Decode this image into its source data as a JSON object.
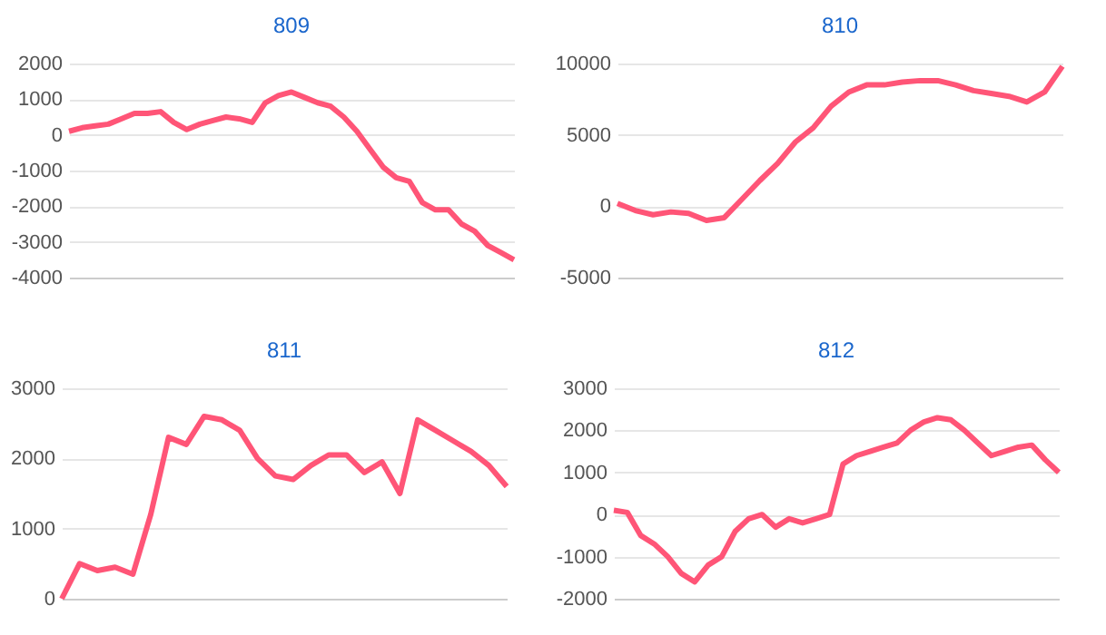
{
  "chart_data": [
    {
      "type": "line",
      "title": "809",
      "tick_labels": "y",
      "grid": "y",
      "categories": [
        null,
        null,
        null,
        null,
        null,
        null,
        null,
        null,
        null,
        null,
        null,
        null,
        null,
        null,
        null,
        null,
        null,
        null,
        null,
        null,
        null,
        null,
        null,
        null,
        null,
        null,
        null,
        null,
        null,
        null,
        null,
        null,
        null,
        null,
        null
      ],
      "series": [
        {
          "color": "#ff5577",
          "values": [
            100,
            200,
            250,
            300,
            450,
            600,
            600,
            650,
            350,
            150,
            300,
            400,
            500,
            450,
            350,
            900,
            1100,
            1200,
            1050,
            900,
            800,
            500,
            100,
            -400,
            -900,
            -1200,
            -1300,
            -1900,
            -2100,
            -2100,
            -2500,
            -2700,
            -3100,
            -3300,
            -3500
          ]
        }
      ],
      "ylim": [
        -4000,
        2000
      ],
      "yticks": [
        -4000,
        -3000,
        -2000,
        -1000,
        0,
        1000,
        2000
      ]
    },
    {
      "type": "line",
      "title": "810",
      "tick_labels": "y",
      "grid": "y",
      "categories": [
        null,
        null,
        null,
        null,
        null,
        null,
        null,
        null,
        null,
        null,
        null,
        null,
        null,
        null,
        null,
        null,
        null,
        null,
        null,
        null,
        null,
        null,
        null,
        null,
        null,
        null
      ],
      "series": [
        {
          "color": "#ff5577",
          "values": [
            200,
            -300,
            -600,
            -400,
            -500,
            -1000,
            -800,
            500,
            1800,
            3000,
            4500,
            5500,
            7000,
            8000,
            8500,
            8500,
            8700,
            8800,
            8800,
            8500,
            8100,
            7900,
            7700,
            7300,
            8000,
            9800
          ]
        }
      ],
      "ylim": [
        -5000,
        10000
      ],
      "yticks": [
        -5000,
        0,
        5000,
        10000
      ]
    },
    {
      "type": "line",
      "title": "811",
      "tick_labels": "y",
      "grid": "y",
      "categories": [
        null,
        null,
        null,
        null,
        null,
        null,
        null,
        null,
        null,
        null,
        null,
        null,
        null,
        null,
        null,
        null,
        null,
        null,
        null,
        null,
        null,
        null,
        null,
        null,
        null,
        null
      ],
      "series": [
        {
          "color": "#ff5577",
          "values": [
            0,
            500,
            400,
            450,
            350,
            1200,
            2300,
            2200,
            2600,
            2550,
            2400,
            2000,
            1750,
            1700,
            1900,
            2050,
            2050,
            1800,
            1950,
            1500,
            2550,
            2400,
            2250,
            2100,
            1900,
            1600
          ]
        }
      ],
      "ylim": [
        0,
        3000
      ],
      "yticks": [
        0,
        1000,
        2000,
        3000
      ]
    },
    {
      "type": "line",
      "title": "812",
      "tick_labels": "y",
      "grid": "y",
      "categories": [
        null,
        null,
        null,
        null,
        null,
        null,
        null,
        null,
        null,
        null,
        null,
        null,
        null,
        null,
        null,
        null,
        null,
        null,
        null,
        null,
        null,
        null,
        null,
        null,
        null,
        null,
        null,
        null,
        null,
        null,
        null,
        null,
        null,
        null
      ],
      "series": [
        {
          "color": "#ff5577",
          "values": [
            100,
            50,
            -500,
            -700,
            -1000,
            -1400,
            -1600,
            -1200,
            -1000,
            -400,
            -100,
            0,
            -300,
            -100,
            -200,
            -100,
            0,
            1200,
            1400,
            1500,
            1600,
            1700,
            2000,
            2200,
            2300,
            2250,
            2000,
            1700,
            1400,
            1500,
            1600,
            1650,
            1300,
            1000
          ]
        }
      ],
      "ylim": [
        -2000,
        3000
      ],
      "yticks": [
        -2000,
        -1000,
        0,
        1000,
        2000,
        3000
      ]
    }
  ]
}
